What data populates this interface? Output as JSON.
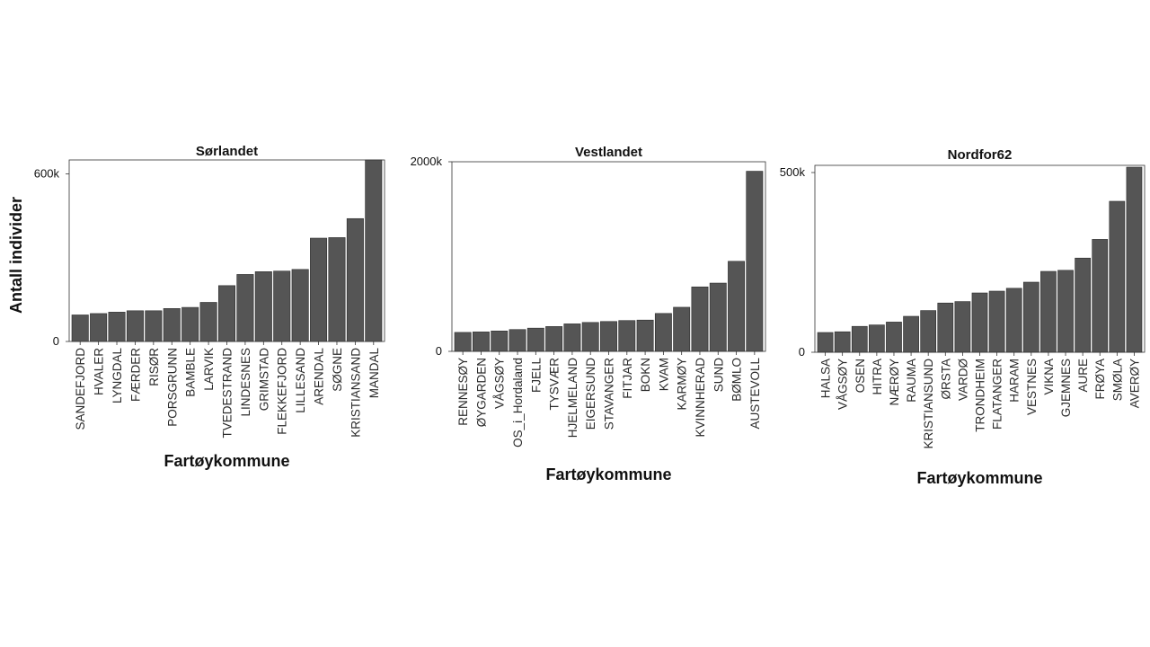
{
  "y_axis_label": "Antall individer",
  "chart_data": [
    {
      "type": "bar",
      "title": "Sørlandet",
      "xlabel": "Fartøykommune",
      "ylabel": "Antall individer",
      "ylim": [
        0,
        650000
      ],
      "yticks": [
        0,
        600000
      ],
      "ytick_labels": [
        "0",
        "600k"
      ],
      "categories": [
        "SANDEFJORD",
        "HVALER",
        "LYNGDAL",
        "FÆRDER",
        "RISØR",
        "PORSGRUNN",
        "BAMBLE",
        "LARVIK",
        "TVEDESTRAND",
        "LINDESNES",
        "GRIMSTAD",
        "FLEKKEFJORD",
        "LILLESAND",
        "ARENDAL",
        "SØGNE",
        "KRISTIANSAND",
        "MANDAL"
      ],
      "values": [
        95000,
        100000,
        105000,
        110000,
        110000,
        118000,
        122000,
        140000,
        200000,
        240000,
        250000,
        252000,
        258000,
        370000,
        372000,
        440000,
        650000
      ]
    },
    {
      "type": "bar",
      "title": "Vestlandet",
      "xlabel": "Fartøykommune",
      "ylabel": "Antall individer",
      "ylim": [
        0,
        2000000
      ],
      "yticks": [
        0,
        2000000
      ],
      "ytick_labels": [
        "0",
        "2000k"
      ],
      "categories": [
        "RENNESØY",
        "ØYGARDEN",
        "VÅGSØY",
        "OS_i_Hordaland",
        "FJELL",
        "TYSVÆR",
        "HJELMELAND",
        "EIGERSUND",
        "STAVANGER",
        "FITJAR",
        "BOKN",
        "KVAM",
        "KARMØY",
        "KVINNHERAD",
        "SUND",
        "BØMLO",
        "AUSTEVOLL"
      ],
      "values": [
        200000,
        205000,
        215000,
        230000,
        245000,
        262000,
        290000,
        305000,
        315000,
        325000,
        330000,
        400000,
        465000,
        680000,
        720000,
        950000,
        1900000
      ]
    },
    {
      "type": "bar",
      "title": "Nordfor62",
      "xlabel": "Fartøykommune",
      "ylabel": "Antall individer",
      "ylim": [
        0,
        520000
      ],
      "yticks": [
        0,
        500000
      ],
      "ytick_labels": [
        "0",
        "500k"
      ],
      "categories": [
        "HALSA",
        "VÅGSØY",
        "OSEN",
        "HITRA",
        "NÆRØY",
        "RAUMA",
        "KRISTIANSUND",
        "ØRSTA",
        "VARDØ",
        "TRONDHEIM",
        "FLATANGER",
        "HARAM",
        "VESTNES",
        "VIKNA",
        "GJEMNES",
        "AURE",
        "FRØYA",
        "SMØLA",
        "AVERØY"
      ],
      "values": [
        55000,
        57000,
        72000,
        76000,
        84000,
        100000,
        116000,
        137000,
        141000,
        165000,
        170000,
        178000,
        195000,
        225000,
        228000,
        262000,
        314000,
        420000,
        515000
      ]
    }
  ]
}
